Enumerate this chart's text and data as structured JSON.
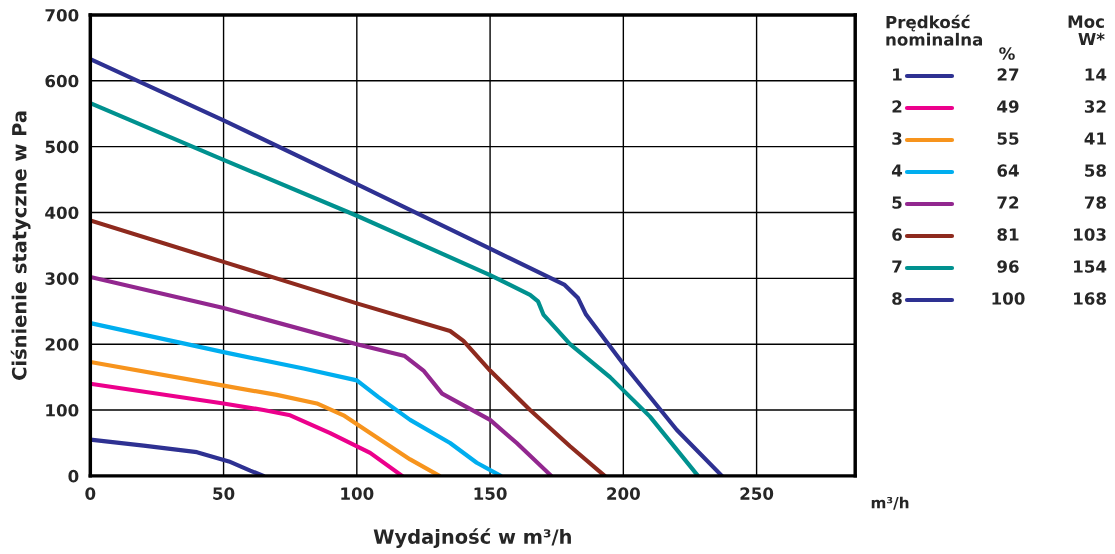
{
  "chart_data": {
    "type": "line",
    "xlabel": "Wydajność w m³/h",
    "ylabel": "Ciśnienie statyczne w Pa",
    "legend_title": "Prędkość\nnominalna",
    "xlim": [
      0,
      287
    ],
    "xticks": [
      0,
      50,
      100,
      150,
      200,
      250
    ],
    "ylim": [
      0,
      700
    ],
    "yticks": [
      0,
      100,
      200,
      300,
      400,
      500,
      600,
      700
    ],
    "grid": true,
    "legend": "right",
    "line_style": "solid",
    "annotations": [
      "m³/h",
      "%",
      "Moc\nW*",
      "27",
      "14",
      "49",
      "32",
      "55",
      "41",
      "64",
      "58",
      "72",
      "78",
      "81",
      "103",
      "96",
      "154",
      "100",
      "168"
    ],
    "series": [
      {
        "name": "1",
        "color": "#2e3192",
        "x": [
          0,
          20,
          40,
          52,
          60,
          65
        ],
        "values": [
          55,
          46,
          36,
          22,
          8,
          0
        ]
      },
      {
        "name": "2",
        "color": "#ec008c",
        "x": [
          0,
          50,
          65,
          75,
          90,
          105,
          117
        ],
        "values": [
          140,
          110,
          100,
          92,
          65,
          35,
          0
        ]
      },
      {
        "name": "3",
        "color": "#f7941d",
        "x": [
          0,
          50,
          70,
          85,
          95,
          105,
          120,
          131
        ],
        "values": [
          173,
          137,
          123,
          110,
          92,
          65,
          25,
          0
        ]
      },
      {
        "name": "4",
        "color": "#00aeef",
        "x": [
          0,
          50,
          80,
          100,
          108,
          120,
          135,
          145,
          154
        ],
        "values": [
          232,
          188,
          163,
          145,
          120,
          85,
          50,
          20,
          0
        ]
      },
      {
        "name": "5",
        "color": "#92278f",
        "x": [
          0,
          50,
          100,
          118,
          125,
          132,
          150,
          160,
          173
        ],
        "values": [
          302,
          255,
          200,
          182,
          160,
          125,
          85,
          50,
          0
        ]
      },
      {
        "name": "6",
        "color": "#8e2a1e",
        "x": [
          0,
          50,
          100,
          135,
          140,
          150,
          165,
          180,
          193
        ],
        "values": [
          388,
          325,
          262,
          220,
          205,
          160,
          100,
          45,
          0
        ]
      },
      {
        "name": "7",
        "color": "#00918f",
        "x": [
          0,
          50,
          100,
          150,
          165,
          168,
          170,
          180,
          195,
          210,
          228
        ],
        "values": [
          566,
          480,
          395,
          305,
          275,
          265,
          245,
          200,
          150,
          90,
          0
        ]
      },
      {
        "name": "8",
        "color": "#2e3192",
        "x": [
          0,
          50,
          100,
          150,
          178,
          183,
          186,
          200,
          220,
          237
        ],
        "values": [
          633,
          540,
          443,
          345,
          290,
          270,
          245,
          170,
          70,
          0
        ]
      }
    ]
  }
}
